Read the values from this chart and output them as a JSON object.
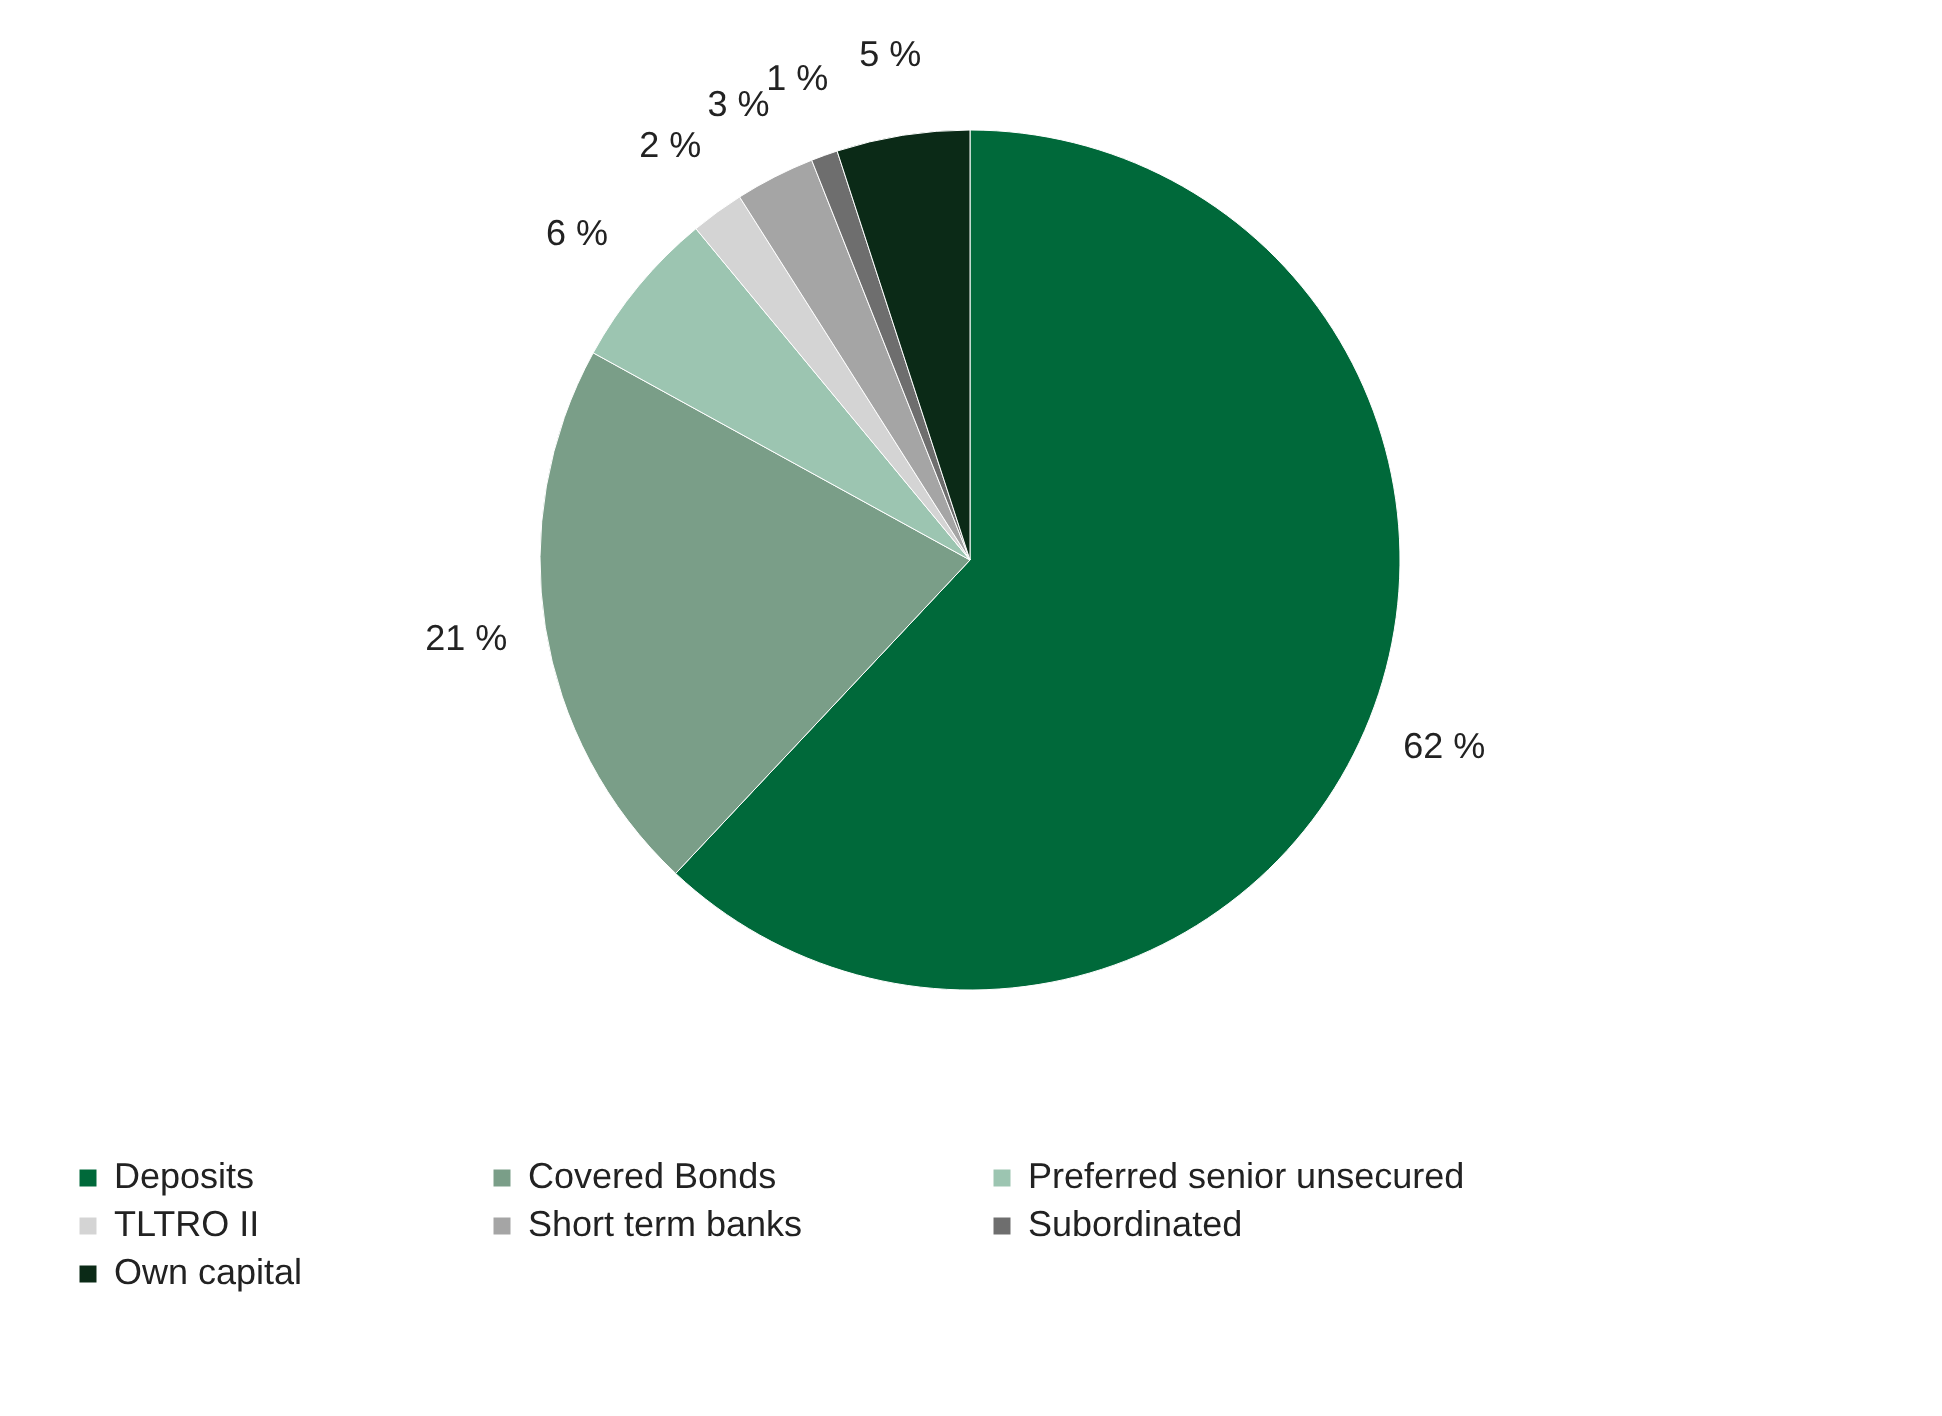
{
  "chart_data": {
    "type": "pie",
    "categories": [
      "Deposits",
      "Covered Bonds",
      "Preferred senior unsecured",
      "TLTRO II",
      "Short term banks",
      "Subordinated",
      "Own capital"
    ],
    "values": [
      62,
      21,
      6,
      2,
      3,
      1,
      5
    ],
    "value_labels": [
      "62 %",
      "21 %",
      "6 %",
      "2 %",
      "3 %",
      "1 %",
      "5 %"
    ],
    "colors": [
      "#00693a",
      "#7a9e88",
      "#9cc5b1",
      "#d4d4d4",
      "#a5a5a5",
      "#6e6e6e",
      "#0b2a17"
    ],
    "legend": "bottom"
  }
}
